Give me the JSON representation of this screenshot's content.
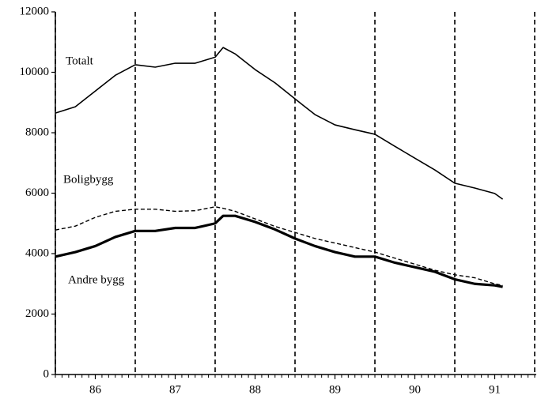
{
  "chart_data": {
    "type": "line",
    "x": [
      85.5,
      85.75,
      86.0,
      86.25,
      86.5,
      86.75,
      87.0,
      87.25,
      87.5,
      87.6,
      87.75,
      88.0,
      88.25,
      88.5,
      88.75,
      89.0,
      89.25,
      89.5,
      89.75,
      90.0,
      90.25,
      90.5,
      90.75,
      91.0,
      91.1
    ],
    "series": [
      {
        "name": "Totalt",
        "color": "#000000",
        "line_style": "solid",
        "values": [
          8650,
          8860,
          9380,
          9900,
          10250,
          10170,
          10300,
          10300,
          10500,
          10820,
          10610,
          10090,
          9650,
          9120,
          8600,
          8260,
          8100,
          7950,
          7550,
          7160,
          6770,
          6330,
          6170,
          5990,
          5800
        ]
      },
      {
        "name": "Boligbygg",
        "color": "#000000",
        "line_style": "dashed",
        "values": [
          4780,
          4910,
          5200,
          5400,
          5470,
          5470,
          5400,
          5420,
          5550,
          5500,
          5400,
          5150,
          4900,
          4700,
          4500,
          4350,
          4200,
          4050,
          3850,
          3650,
          3450,
          3300,
          3200,
          3000,
          2950
        ]
      },
      {
        "name": "Andre bygg",
        "color": "#000000",
        "line_style": "thick",
        "values": [
          3900,
          4050,
          4250,
          4550,
          4750,
          4750,
          4850,
          4850,
          5000,
          5250,
          5250,
          5050,
          4800,
          4500,
          4250,
          4050,
          3900,
          3900,
          3700,
          3550,
          3400,
          3150,
          3000,
          2950,
          2900
        ]
      }
    ],
    "xlim": [
      85.5,
      91.5
    ],
    "xticks": [
      86,
      87,
      88,
      89,
      90,
      91
    ],
    "ylim": [
      0,
      12000
    ],
    "yticks": [
      0,
      2000,
      4000,
      6000,
      8000,
      10000,
      12000
    ],
    "x_grid": "dashed"
  }
}
